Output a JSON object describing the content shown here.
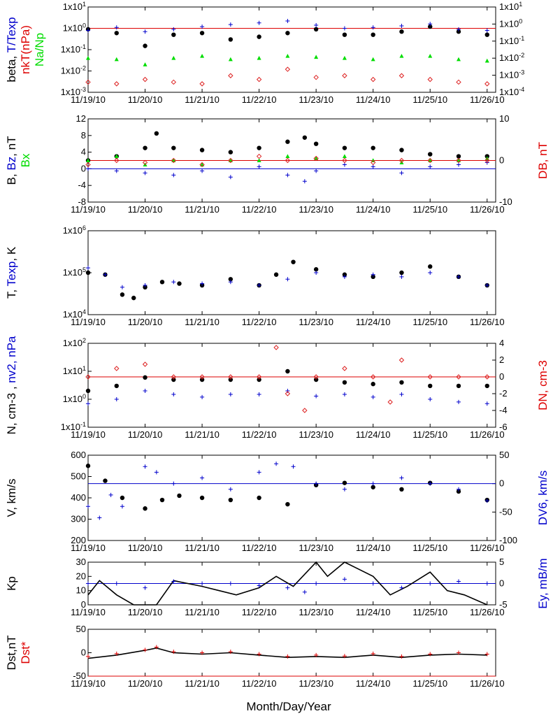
{
  "figure": {
    "xlabel": "Month/Day/Year",
    "x_ticks": [
      "11/19/10",
      "11/20/10",
      "11/21/10",
      "11/22/10",
      "11/23/10",
      "11/24/10",
      "11/25/10",
      "11/26/10"
    ]
  },
  "colors": {
    "black": "#000000",
    "blue": "#0000CC",
    "red": "#DD0000",
    "green": "#00DD00",
    "pink": "#DD2222"
  },
  "chart_data": [
    {
      "type": "scatter",
      "ylabel_left": [
        {
          "text": "beta, ",
          "color": "#000000"
        },
        {
          "text": "T/Texp",
          "color": "#0000CC"
        }
      ],
      "ylabel_left2": [
        {
          "text": "nkT(nPa)",
          "color": "#DD0000"
        }
      ],
      "ylabel_left3": [
        {
          "text": "Na/Np",
          "color": "#00DD00"
        }
      ],
      "ylim": [
        0.001,
        10
      ],
      "yscale": "log",
      "y_ticks_left": [
        "1x10-3",
        "1x10-2",
        "1x10-1",
        "1x100",
        "1x101"
      ],
      "y_ticks_right": [
        "1x10-4",
        "1x10-3",
        "1x10-2",
        "1x10-1",
        "1x100",
        "1x101"
      ],
      "ref_lines": [
        {
          "y": 1,
          "color": "#DD0000"
        }
      ],
      "series": [
        {
          "marker": "dot",
          "color": "#000000",
          "x": [
            0,
            0.5,
            1,
            1.5,
            2,
            2.5,
            3,
            3.5,
            4,
            4.5,
            5,
            5.5,
            6,
            6.5,
            7
          ],
          "y": [
            0.9,
            0.6,
            0.15,
            0.5,
            0.6,
            0.3,
            0.4,
            0.6,
            0.9,
            0.5,
            0.5,
            0.7,
            1.2,
            0.7,
            0.5
          ]
        },
        {
          "marker": "plus",
          "color": "#0000CC",
          "x": [
            0,
            0.5,
            1,
            1.5,
            2,
            2.5,
            3,
            3.5,
            4,
            4.5,
            5,
            5.5,
            6,
            6.5,
            7
          ],
          "y": [
            0.8,
            1.1,
            0.7,
            0.9,
            1.2,
            1.5,
            1.8,
            2.2,
            1.4,
            1.0,
            1.1,
            1.3,
            1.6,
            0.9,
            0.8
          ]
        },
        {
          "marker": "triangle",
          "color": "#00DD00",
          "x": [
            0,
            0.5,
            1,
            1.5,
            2,
            2.5,
            3,
            3.5,
            4,
            4.5,
            5,
            5.5,
            6,
            6.5,
            7
          ],
          "y": [
            0.04,
            0.035,
            0.02,
            0.04,
            0.05,
            0.035,
            0.04,
            0.05,
            0.045,
            0.04,
            0.035,
            0.05,
            0.05,
            0.035,
            0.03
          ]
        },
        {
          "marker": "diamond",
          "color": "#DD2222",
          "x": [
            0,
            0.5,
            1,
            1.5,
            2,
            2.5,
            3,
            3.5,
            4,
            4.5,
            5,
            5.5,
            6,
            6.5,
            7
          ],
          "y": [
            0.003,
            0.0025,
            0.004,
            0.003,
            0.0025,
            0.006,
            0.004,
            0.012,
            0.005,
            0.006,
            0.004,
            0.006,
            0.004,
            0.003,
            0.0025
          ]
        }
      ]
    },
    {
      "type": "scatter",
      "ylabel_left": [
        {
          "text": "B, ",
          "color": "#000000"
        },
        {
          "text": "Bz",
          "color": "#0000CC"
        },
        {
          "text": ", nT",
          "color": "#000000"
        }
      ],
      "ylabel_left2": [
        {
          "text": "Bx",
          "color": "#00DD00"
        }
      ],
      "ylabel_right": [
        {
          "text": "DB, nT",
          "color": "#DD0000"
        }
      ],
      "ylim": [
        -8,
        12
      ],
      "y_ticks_left": [
        "-8",
        "-4",
        "0",
        "4",
        "8",
        "12"
      ],
      "y2lim": [
        -10,
        10
      ],
      "y_ticks_right": [
        "-10",
        "0",
        "10"
      ],
      "ref_lines": [
        {
          "y": 0,
          "color": "#0000CC"
        },
        {
          "y": 2,
          "color": "#DD0000"
        }
      ],
      "series": [
        {
          "marker": "dot",
          "color": "#000000",
          "x": [
            0,
            0.5,
            1,
            1.2,
            1.5,
            2,
            2.5,
            3,
            3.5,
            3.8,
            4,
            4.5,
            5,
            5.5,
            6,
            6.5,
            7
          ],
          "y": [
            2,
            3,
            5,
            8.5,
            5,
            4.5,
            4,
            5,
            6.5,
            7.5,
            6,
            5,
            5,
            4.5,
            3.5,
            3,
            3
          ]
        },
        {
          "marker": "plus",
          "color": "#0000CC",
          "x": [
            0,
            0.5,
            1,
            1.5,
            2,
            2.5,
            3,
            3.5,
            3.8,
            4,
            4.5,
            5,
            5.5,
            6,
            6.5,
            7
          ],
          "y": [
            0,
            -0.5,
            -1,
            -1.5,
            -0.5,
            -2,
            0.5,
            -1.5,
            -3,
            -0.5,
            1,
            0.5,
            -1,
            0.5,
            1,
            1.5
          ]
        },
        {
          "marker": "triangle",
          "color": "#00DD00",
          "x": [
            0,
            0.5,
            1,
            1.5,
            2,
            2.5,
            3,
            3.5,
            4,
            4.5,
            5,
            5.5,
            6,
            6.5,
            7
          ],
          "y": [
            2,
            3,
            1,
            2,
            1,
            2,
            2,
            3,
            2.5,
            3,
            2,
            1.5,
            2,
            2,
            2.5
          ]
        },
        {
          "marker": "diamond",
          "color": "#DD2222",
          "x": [
            0,
            0.5,
            1,
            1.5,
            2,
            2.5,
            3,
            3.5,
            4,
            4.5,
            5,
            5.5,
            6,
            6.5,
            7
          ],
          "y": [
            1,
            2,
            1.5,
            2,
            1,
            2,
            3,
            2,
            2.5,
            2,
            1.5,
            2,
            2,
            2,
            2
          ]
        }
      ]
    },
    {
      "type": "scatter",
      "ylabel_left": [
        {
          "text": "T, ",
          "color": "#000000"
        },
        {
          "text": "Texp",
          "color": "#0000CC"
        },
        {
          "text": ", K",
          "color": "#000000"
        }
      ],
      "ylim": [
        10000,
        1000000
      ],
      "yscale": "log",
      "y_ticks_left": [
        "1x104",
        "1x105",
        "1x106"
      ],
      "series": [
        {
          "marker": "dot",
          "color": "#000000",
          "x": [
            0,
            0.3,
            0.6,
            0.8,
            1,
            1.3,
            1.6,
            2,
            2.5,
            3,
            3.3,
            3.6,
            4,
            4.5,
            5,
            5.5,
            6,
            6.5,
            7
          ],
          "y": [
            100000,
            90000,
            30000,
            25000,
            45000,
            60000,
            55000,
            50000,
            70000,
            50000,
            90000,
            180000,
            120000,
            90000,
            80000,
            100000,
            140000,
            80000,
            50000
          ]
        },
        {
          "marker": "plus",
          "color": "#0000CC",
          "x": [
            0,
            0.3,
            0.6,
            1,
            1.5,
            2,
            2.5,
            3,
            3.5,
            4,
            4.5,
            5,
            5.5,
            6,
            6.5,
            7
          ],
          "y": [
            130000,
            90000,
            45000,
            50000,
            60000,
            55000,
            60000,
            50000,
            70000,
            100000,
            80000,
            90000,
            80000,
            100000,
            80000,
            50000
          ]
        }
      ]
    },
    {
      "type": "scatter",
      "ylabel_left": [
        {
          "text": "N, cm-3 , ",
          "color": "#000000"
        },
        {
          "text": "nv2, nPa",
          "color": "#0000CC"
        }
      ],
      "ylabel_right": [
        {
          "text": "DN, cm-3",
          "color": "#DD0000"
        }
      ],
      "ylim": [
        0.1,
        100
      ],
      "yscale": "log",
      "y_ticks_left": [
        "1x10-1",
        "1x100",
        "1x101",
        "1x102"
      ],
      "y2lim": [
        -6,
        4
      ],
      "y_ticks_right": [
        "-6",
        "-4",
        "-2",
        "0",
        "2",
        "4"
      ],
      "ref_lines": [
        {
          "y2": 0,
          "color": "#DD0000"
        }
      ],
      "series": [
        {
          "marker": "dot",
          "color": "#000000",
          "x": [
            0,
            0.5,
            1,
            1.5,
            2,
            2.5,
            3,
            3.5,
            4,
            4.5,
            5,
            5.5,
            6,
            6.5,
            7
          ],
          "y": [
            2,
            3,
            6,
            5,
            5,
            5,
            5,
            10,
            5,
            4,
            3.5,
            4,
            3,
            3,
            3
          ]
        },
        {
          "marker": "plus",
          "color": "#0000CC",
          "x": [
            0,
            0.5,
            1,
            1.5,
            2,
            2.5,
            3,
            3.5,
            4,
            4.5,
            5,
            5.5,
            6,
            6.5,
            7
          ],
          "y": [
            0.7,
            1,
            2,
            1.5,
            1.2,
            1.5,
            1.5,
            2,
            1.3,
            1.5,
            1.2,
            1.5,
            1,
            0.8,
            0.7
          ]
        },
        {
          "marker": "diamond",
          "color": "#DD2222",
          "y_axis": "right",
          "x": [
            0,
            0.5,
            1,
            1.5,
            2,
            2.5,
            3,
            3.3,
            3.5,
            3.8,
            4,
            4.5,
            5,
            5.3,
            5.5,
            6,
            6.5,
            7
          ],
          "y": [
            0,
            1,
            1.5,
            0,
            0,
            0,
            0,
            3.5,
            -2,
            -4,
            0,
            1,
            0,
            -3,
            2,
            0,
            0,
            0
          ]
        }
      ]
    },
    {
      "type": "scatter",
      "ylabel_left": [
        {
          "text": "V, km/s",
          "color": "#000000"
        }
      ],
      "ylabel_right": [
        {
          "text": "DV6, km/s",
          "color": "#0000CC"
        }
      ],
      "ylim": [
        200,
        600
      ],
      "y_ticks_left": [
        "200",
        "300",
        "400",
        "500",
        "600"
      ],
      "y2lim": [
        -100,
        50
      ],
      "y_ticks_right": [
        "-100",
        "-50",
        "0",
        "50"
      ],
      "ref_lines": [
        {
          "y2": 0,
          "color": "#0000CC"
        }
      ],
      "series": [
        {
          "marker": "dot",
          "color": "#000000",
          "x": [
            0,
            0.3,
            0.6,
            1,
            1.3,
            1.6,
            2,
            2.5,
            3,
            3.5,
            4,
            4.5,
            5,
            5.5,
            6,
            6.5,
            7
          ],
          "y": [
            550,
            480,
            400,
            350,
            390,
            410,
            400,
            390,
            400,
            370,
            460,
            470,
            450,
            440,
            470,
            430,
            390
          ]
        },
        {
          "marker": "plus",
          "color": "#0000CC",
          "y_axis": "right",
          "x": [
            0,
            0.2,
            0.4,
            0.6,
            1,
            1.2,
            1.5,
            2,
            2.5,
            3,
            3.3,
            3.6,
            4,
            4.5,
            5,
            5.5,
            6,
            6.5,
            7
          ],
          "y": [
            -40,
            -60,
            -20,
            -40,
            30,
            20,
            0,
            10,
            -10,
            20,
            35,
            30,
            0,
            -10,
            0,
            10,
            0,
            -10,
            -30
          ]
        }
      ]
    },
    {
      "type": "line",
      "ylabel_left": [
        {
          "text": "Kp",
          "color": "#000000"
        }
      ],
      "ylabel_right": [
        {
          "text": "Ey, mB/m",
          "color": "#0000CC"
        }
      ],
      "ylim": [
        0,
        30
      ],
      "y_ticks_left": [
        "0",
        "10",
        "20",
        "30"
      ],
      "y2lim": [
        -5,
        5
      ],
      "y_ticks_right": [
        "-5",
        "0",
        "5"
      ],
      "ref_lines": [
        {
          "y2": 0,
          "color": "#0000CC"
        }
      ],
      "series": [
        {
          "marker": "line",
          "color": "#000000",
          "x": [
            0,
            0.2,
            0.5,
            0.8,
            1.2,
            1.5,
            2,
            2.3,
            2.6,
            3,
            3.3,
            3.6,
            4,
            4.2,
            4.5,
            5,
            5.3,
            5.6,
            6,
            6.3,
            6.6,
            7
          ],
          "y": [
            7,
            17,
            7,
            0,
            0,
            17,
            13,
            10,
            7,
            12,
            20,
            13,
            30,
            20,
            30,
            20,
            7,
            13,
            23,
            10,
            7,
            0
          ]
        },
        {
          "marker": "plus",
          "color": "#0000CC",
          "y_axis": "right",
          "x": [
            0,
            0.5,
            1,
            1.5,
            2,
            2.5,
            3,
            3.5,
            3.8,
            4,
            4.5,
            5,
            5.5,
            6,
            6.5,
            7
          ],
          "y": [
            0,
            0,
            -1,
            0.5,
            0,
            0,
            -0.5,
            -1,
            -2,
            0,
            1,
            0,
            -1,
            0,
            0.5,
            0
          ]
        }
      ]
    },
    {
      "type": "line",
      "ylabel_left": [
        {
          "text": "Dst,nT",
          "color": "#000000"
        }
      ],
      "ylabel_left2": [
        {
          "text": "Dst*",
          "color": "#DD0000"
        }
      ],
      "ylim": [
        -50,
        50
      ],
      "y_ticks_left": [
        "-50",
        "0",
        "50"
      ],
      "ref_lines": [
        {
          "y": -50,
          "color": "#DD0000"
        }
      ],
      "series": [
        {
          "marker": "line",
          "color": "#000000",
          "x": [
            0,
            0.5,
            1,
            1.2,
            1.5,
            2,
            2.5,
            3,
            3.5,
            4,
            4.5,
            5,
            5.5,
            6,
            6.5,
            7
          ],
          "y": [
            -12,
            -5,
            5,
            10,
            0,
            -3,
            0,
            -5,
            -10,
            -8,
            -10,
            -5,
            -10,
            -5,
            -3,
            -5
          ]
        },
        {
          "marker": "plus",
          "color": "#DD0000",
          "x": [
            0,
            0.5,
            1,
            1.2,
            1.5,
            2,
            2.5,
            3,
            3.5,
            4,
            4.5,
            5,
            5.5,
            6,
            6.5,
            7
          ],
          "y": [
            -8,
            -2,
            6,
            12,
            2,
            0,
            2,
            -3,
            -8,
            -5,
            -7,
            -2,
            -8,
            -3,
            0,
            -3
          ]
        }
      ]
    }
  ]
}
